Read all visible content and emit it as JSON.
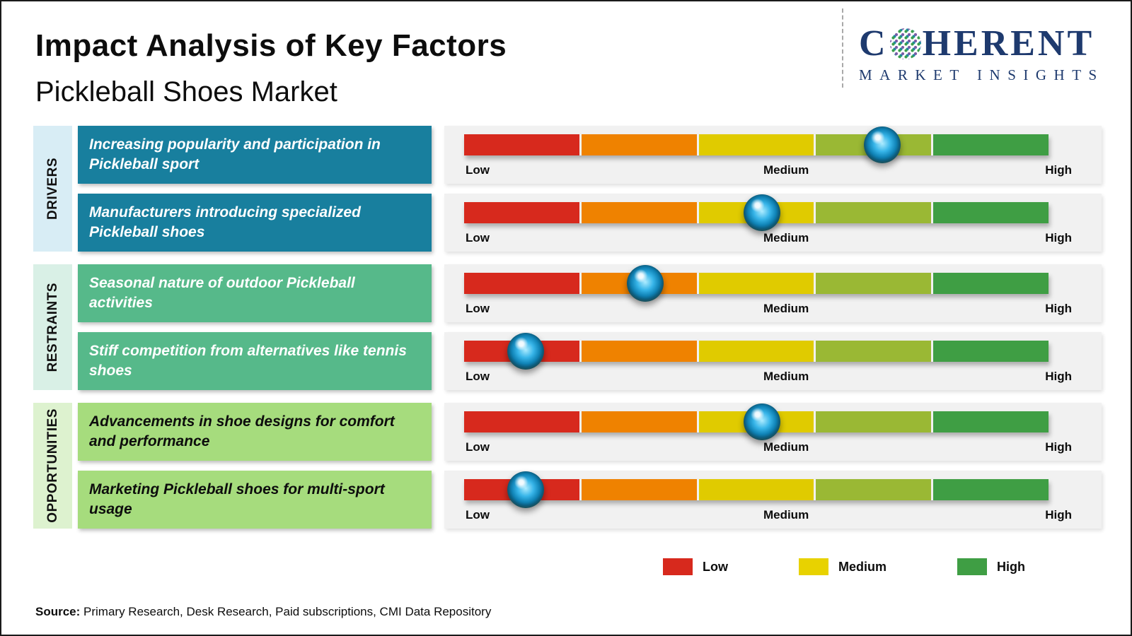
{
  "page": {
    "title": "Impact Analysis of Key Factors",
    "subtitle": "Pickleball Shoes Market"
  },
  "logo": {
    "line1_pre": "C",
    "line1_post": "HERENT",
    "line2": "MARKET INSIGHTS",
    "brand_color": "#1e3a6e",
    "o_icon": "dotted-globe-icon"
  },
  "scale_labels": {
    "low": "Low",
    "medium": "Medium",
    "high": "High"
  },
  "groups": [
    {
      "label": "DRIVERS",
      "rows": [
        {
          "text": "Increasing popularity and participation in Pickleball sport",
          "marker_left": "71.5%"
        },
        {
          "text": "Manufacturers introducing specialized Pickleball shoes",
          "marker_left": "51%"
        }
      ]
    },
    {
      "label": "RESTRAINTS",
      "rows": [
        {
          "text": "Seasonal nature of outdoor Pickleball activities",
          "marker_left": "31%"
        },
        {
          "text": "Stiff competition from alternatives like tennis shoes",
          "marker_left": "10.5%"
        }
      ]
    },
    {
      "label": "OPPORTUNITIES",
      "rows": [
        {
          "text": "Advancements in shoe designs for comfort and performance",
          "marker_left": "51%"
        },
        {
          "text": "Marketing Pickleball shoes for multi-sport usage",
          "marker_left": "10.5%"
        }
      ]
    }
  ],
  "legend": [
    {
      "label": "Low",
      "color": "#d7291d"
    },
    {
      "label": "Medium",
      "color": "#e8d200"
    },
    {
      "label": "High",
      "color": "#3f9e44"
    }
  ],
  "source": {
    "label": "Source:",
    "text": " Primary Research, Desk Research, Paid subscriptions, CMI Data Repository"
  },
  "chart_data": {
    "type": "bar",
    "title": "Impact Analysis of Key Factors",
    "subtitle": "Pickleball Shoes Market",
    "scale": {
      "labels": [
        "Low",
        "Medium",
        "High"
      ],
      "range": [
        0,
        100
      ]
    },
    "segment_colors": [
      "#d7291d",
      "#ef8200",
      "#e0cb00",
      "#9ab834",
      "#3f9e44"
    ],
    "legend": [
      "Low",
      "Medium",
      "High"
    ],
    "legend_position": "bottom",
    "rows": [
      {
        "group": "Drivers",
        "factor": "Increasing popularity and participation in Pickleball sport",
        "impact_value": 72,
        "impact_level": "Medium-High"
      },
      {
        "group": "Drivers",
        "factor": "Manufacturers introducing specialized Pickleball shoes",
        "impact_value": 51,
        "impact_level": "Medium"
      },
      {
        "group": "Restraints",
        "factor": "Seasonal nature of outdoor Pickleball activities",
        "impact_value": 31,
        "impact_level": "Low-Medium"
      },
      {
        "group": "Restraints",
        "factor": "Stiff competition from alternatives like tennis shoes",
        "impact_value": 11,
        "impact_level": "Low"
      },
      {
        "group": "Opportunities",
        "factor": "Advancements in shoe designs for comfort and performance",
        "impact_value": 51,
        "impact_level": "Medium"
      },
      {
        "group": "Opportunities",
        "factor": "Marketing Pickleball shoes for multi-sport usage",
        "impact_value": 11,
        "impact_level": "Low"
      }
    ]
  }
}
